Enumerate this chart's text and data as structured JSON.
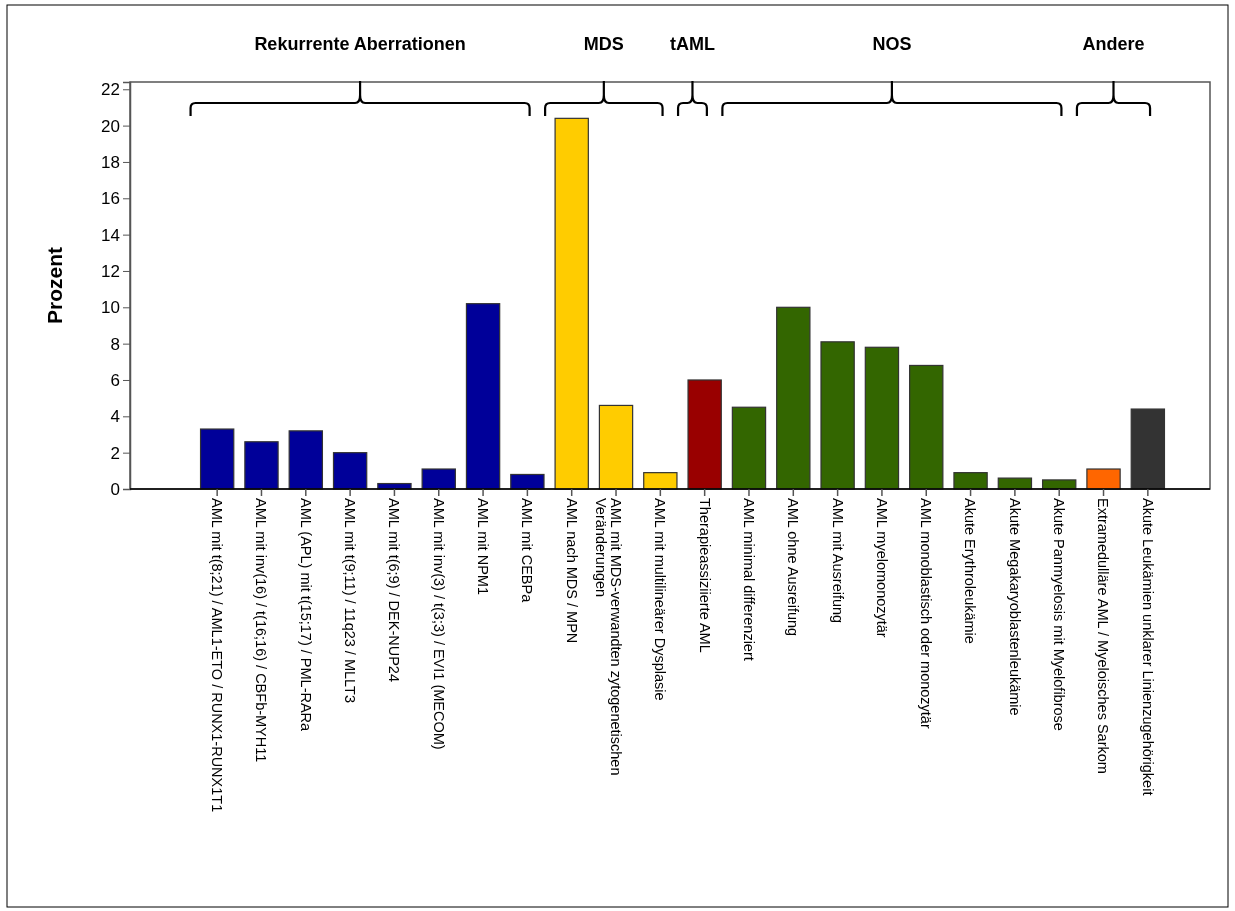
{
  "chart_data": {
    "type": "bar",
    "ylabel": "Prozent",
    "categories": [
      "AML mit t(8;21) / AML1-ETO / RUNX1-RUNX1T1",
      "AML mit inv(16) / t(16;16) / CBFb-MYH11",
      "AML (APL) mit  t(15;17) / PML-RARa",
      "AML mit t(9;11) / 11q23 / MLLT3",
      "AML mit t(6;9) / DEK-NUP24",
      "AML mit inv(3) / t(3;3) / EVI1 (MECOM)",
      "AML mit NPM1",
      "AML mit CEBPa",
      "AML nach MDS / MPN",
      "AML mit MDS-verwandten zytogenetischen Veränderungen",
      "AML mit multilineärer Dysplasie",
      "Therapieassiziierte AML",
      "AML minimal differenziert",
      "AML ohne Ausreifung",
      "AML mit Ausreifung",
      "AML myelomonozytär",
      "AML monoblastisch oder monozytär",
      "Akute Erythroleukämie",
      "Akute Megakaryoblastenleukämie",
      "Akute Panmyelosis mit Myelofibrose",
      "Extramedulläre AML / Myeloisches Sarkom",
      "Akute Leukämien unklarer Linienzugehörigkeit"
    ],
    "values": [
      3.3,
      2.6,
      3.2,
      2.0,
      0.3,
      1.1,
      10.2,
      0.8,
      20.4,
      4.6,
      0.9,
      6.0,
      4.5,
      10.0,
      8.1,
      7.8,
      6.8,
      0.9,
      0.6,
      0.5,
      1.1,
      4.4
    ],
    "colors": [
      "#000099",
      "#000099",
      "#000099",
      "#000099",
      "#000099",
      "#000099",
      "#000099",
      "#000099",
      "#ffcc00",
      "#ffcc00",
      "#ffcc00",
      "#990000",
      "#336600",
      "#336600",
      "#336600",
      "#336600",
      "#336600",
      "#336600",
      "#336600",
      "#336600",
      "#ff6600",
      "#333333"
    ],
    "ylim": [
      0,
      22.4
    ],
    "yticks": [
      0,
      2,
      4,
      6,
      8,
      10,
      12,
      14,
      16,
      18,
      20,
      22
    ],
    "annotations": [
      "Rekurrente Aberrationen",
      "MDS",
      "tAML",
      "NOS",
      "Andere"
    ]
  }
}
